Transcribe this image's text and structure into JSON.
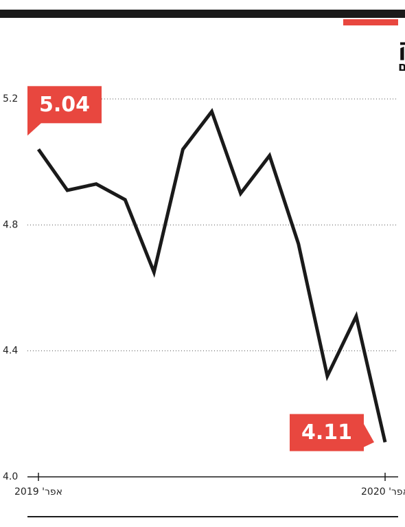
{
  "chart_data": {
    "type": "line",
    "title": "חולשה מתגברת בהייטק",
    "subtitle": "יצוא הייטק במיליארדי שקלים",
    "categories": [
      "אפר' 2019",
      null,
      null,
      null,
      null,
      null,
      null,
      null,
      null,
      null,
      null,
      null,
      "אפר' 2020"
    ],
    "series": [
      {
        "color": "#1a1a1a",
        "values": [
          5.04,
          4.91,
          4.93,
          4.88,
          4.65,
          5.04,
          5.16,
          4.9,
          5.02,
          4.74,
          4.32,
          4.51,
          4.11
        ]
      }
    ],
    "ylim": [
      4.0,
      5.2
    ],
    "yticks": [
      {
        "value": 4.0,
        "label": "4.0"
      },
      4.4,
      4.8,
      5.2
    ],
    "grid": true,
    "data_labels": "first-last",
    "label_color": "#e8473f"
  }
}
